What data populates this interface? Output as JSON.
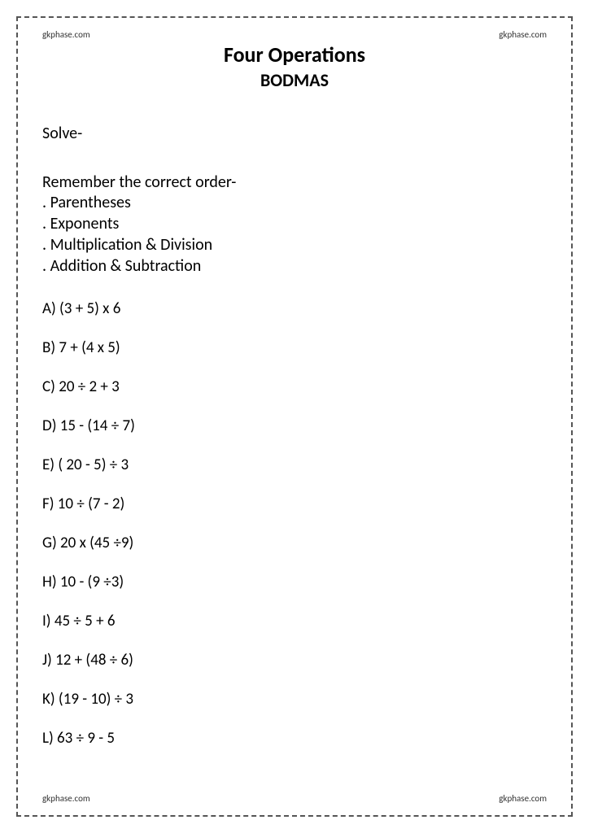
{
  "watermark": "gkphase.com",
  "title": "Four Operations",
  "subtitle": "BODMAS",
  "instruction": "Solve-",
  "orderHeading": "Remember the correct order-",
  "orderItems": [
    ". Parentheses",
    ". Exponents",
    ". Multiplication & Division",
    ". Addition & Subtraction"
  ],
  "problems": [
    "A) (3 + 5) x 6",
    "B) 7 + (4 x 5)",
    "C) 20 ÷ 2 + 3",
    "D) 15 - (14 ÷ 7)",
    "E) ( 20 - 5) ÷  3",
    "F) 10 ÷ (7 - 2)",
    "G) 20 x (45 ÷9)",
    "H) 10 - (9 ÷3)",
    "I)  45 ÷ 5 + 6",
    "J)  12 + (48 ÷ 6)",
    "K) (19 - 10) ÷ 3",
    "L) 63 ÷ 9 - 5"
  ],
  "colors": {
    "background": "#ffffff",
    "text": "#000000",
    "border": "#555555",
    "watermark": "#333333"
  },
  "fontsize": {
    "title": 26,
    "subtitle": 22,
    "body": 20,
    "problem": 19,
    "watermark": 11
  }
}
